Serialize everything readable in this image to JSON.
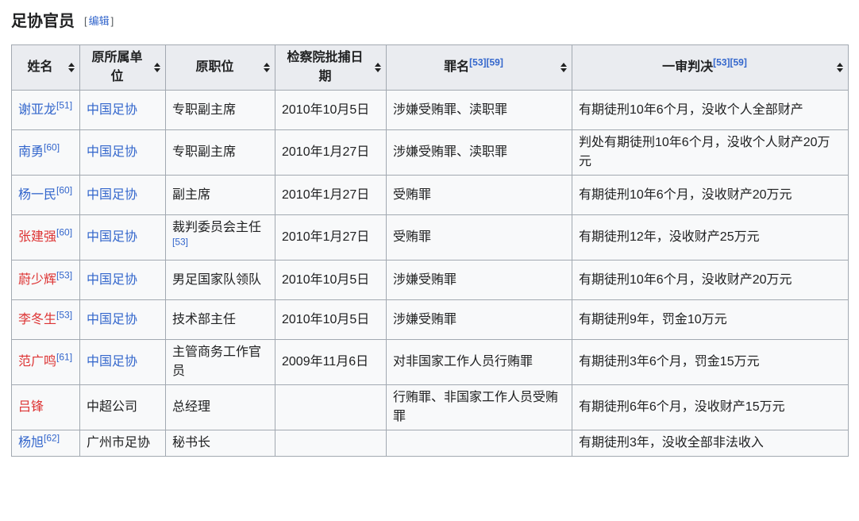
{
  "page": {
    "title": "足协官员",
    "edit": {
      "bracket_open": "[",
      "label": "编辑",
      "bracket_close": "]"
    }
  },
  "colors": {
    "link_blue": "#3366cc",
    "link_red": "#dd3333",
    "header_background": "#eaecf0",
    "table_background": "#f8f9fa",
    "border": "#a2a9b1",
    "text": "#202122"
  },
  "table": {
    "columns": [
      {
        "label": "姓名",
        "refs": []
      },
      {
        "label": "原所属单位",
        "refs": []
      },
      {
        "label": "原职位",
        "refs": []
      },
      {
        "label": "检察院批捕日期",
        "refs": []
      },
      {
        "label": "罪名",
        "refs": [
          "[53]",
          "[59]"
        ]
      },
      {
        "label": "一审判决",
        "refs": [
          "[53]",
          "[59]"
        ]
      }
    ],
    "rows": [
      {
        "name": "谢亚龙",
        "name_ref": "[51]",
        "name_link_color": "blue",
        "unit": "中国足协",
        "unit_is_link": true,
        "position": "专职副主席",
        "position_ref": "",
        "arrest_date": "2010年10月5日",
        "charge": "涉嫌受贿罪、渎职罪",
        "verdict": "有期徒刑10年6个月，没收个人全部财产"
      },
      {
        "name": "南勇",
        "name_ref": "[60]",
        "name_link_color": "blue",
        "unit": "中国足协",
        "unit_is_link": true,
        "position": "专职副主席",
        "position_ref": "",
        "arrest_date": "2010年1月27日",
        "charge": "涉嫌受贿罪、渎职罪",
        "verdict": "判处有期徒刑10年6个月，没收个人财产20万元"
      },
      {
        "name": "杨一民",
        "name_ref": "[60]",
        "name_link_color": "blue",
        "unit": "中国足协",
        "unit_is_link": true,
        "position": "副主席",
        "position_ref": "",
        "arrest_date": "2010年1月27日",
        "charge": "受贿罪",
        "verdict": "有期徒刑10年6个月，没收财产20万元"
      },
      {
        "name": "张建强",
        "name_ref": "[60]",
        "name_link_color": "red",
        "unit": "中国足协",
        "unit_is_link": true,
        "position": "裁判委员会主任",
        "position_ref": "[53]",
        "arrest_date": "2010年1月27日",
        "charge": "受贿罪",
        "verdict": "有期徒刑12年，没收财产25万元"
      },
      {
        "name": "蔚少辉",
        "name_ref": "[53]",
        "name_link_color": "red",
        "unit": "中国足协",
        "unit_is_link": true,
        "position": "男足国家队领队",
        "position_ref": "",
        "arrest_date": "2010年10月5日",
        "charge": "涉嫌受贿罪",
        "verdict": "有期徒刑10年6个月，没收财产20万元"
      },
      {
        "name": "李冬生",
        "name_ref": "[53]",
        "name_link_color": "red",
        "unit": "中国足协",
        "unit_is_link": true,
        "position": "技术部主任",
        "position_ref": "",
        "arrest_date": "2010年10月5日",
        "charge": "涉嫌受贿罪",
        "verdict": "有期徒刑9年，罚金10万元"
      },
      {
        "name": "范广鸣",
        "name_ref": "[61]",
        "name_link_color": "red",
        "unit": "中国足协",
        "unit_is_link": true,
        "position": "主管商务工作官员",
        "position_ref": "",
        "arrest_date": "2009年11月6日",
        "charge": "对非国家工作人员行贿罪",
        "verdict": "有期徒刑3年6个月，罚金15万元"
      },
      {
        "name": "吕锋",
        "name_ref": "",
        "name_link_color": "red",
        "unit": "中超公司",
        "unit_is_link": false,
        "position": "总经理",
        "position_ref": "",
        "arrest_date": "",
        "charge": "行贿罪、非国家工作人员受贿罪",
        "verdict": "有期徒刑6年6个月，没收财产15万元"
      },
      {
        "name": "杨旭",
        "name_ref": "[62]",
        "name_link_color": "blue",
        "unit": "广州市足协",
        "unit_is_link": false,
        "position": "秘书长",
        "position_ref": "",
        "arrest_date": "",
        "charge": "",
        "verdict": "有期徒刑3年，没收全部非法收入"
      }
    ]
  }
}
